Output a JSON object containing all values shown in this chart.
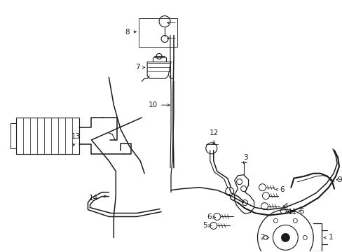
{
  "background_color": "#ffffff",
  "line_color": "#1a1a1a",
  "fig_width": 4.89,
  "fig_height": 3.6,
  "dpi": 100,
  "label_fontsize": 7.5,
  "lw_thin": 0.7,
  "lw_med": 1.1,
  "lw_thick": 1.5
}
